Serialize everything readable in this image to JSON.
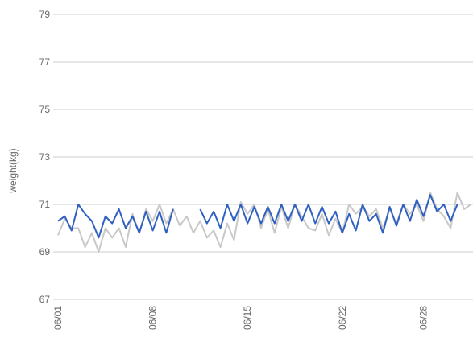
{
  "chart_data": {
    "type": "line",
    "y_label": "weight(kg)",
    "categories": [
      "06/01",
      null,
      null,
      null,
      null,
      null,
      null,
      null,
      null,
      null,
      null,
      null,
      null,
      null,
      "06/08",
      null,
      null,
      null,
      null,
      null,
      null,
      null,
      null,
      null,
      null,
      null,
      null,
      null,
      "06/15",
      null,
      null,
      null,
      null,
      null,
      null,
      null,
      null,
      null,
      null,
      null,
      null,
      null,
      "06/22",
      null,
      null,
      null,
      null,
      null,
      null,
      null,
      null,
      null,
      null,
      null,
      "06/28",
      null,
      null,
      null,
      null,
      null,
      null,
      null
    ],
    "series": [
      {
        "color": "#c8c8c8",
        "values": [
          69.7,
          70.4,
          70.0,
          70.0,
          69.2,
          69.8,
          69.0,
          70.0,
          69.6,
          70.0,
          69.2,
          70.6,
          69.8,
          70.8,
          70.3,
          71.0,
          70.2,
          70.8,
          70.1,
          70.5,
          69.8,
          70.3,
          69.6,
          69.9,
          69.2,
          70.2,
          69.5,
          71.1,
          70.6,
          71.0,
          70.0,
          70.8,
          69.8,
          70.9,
          70.0,
          71.0,
          70.5,
          70.0,
          69.9,
          70.6,
          69.7,
          70.4,
          69.8,
          71.0,
          70.6,
          70.9,
          70.5,
          70.8,
          70.0,
          70.8,
          70.2,
          71.0,
          70.6,
          71.0,
          70.3,
          71.5,
          70.8,
          70.5,
          70.0,
          71.5,
          70.8,
          71.0
        ]
      },
      {
        "color": "#3060c0",
        "values": [
          70.3,
          70.5,
          69.9,
          71.0,
          70.6,
          70.3,
          69.6,
          70.5,
          70.2,
          70.8,
          70.0,
          70.5,
          69.8,
          70.7,
          69.9,
          70.7,
          69.8,
          70.8,
          null,
          null,
          null,
          70.8,
          70.2,
          70.7,
          70.0,
          71.0,
          70.3,
          71.0,
          70.2,
          70.9,
          70.2,
          70.9,
          70.2,
          71.0,
          70.3,
          71.0,
          70.3,
          71.0,
          70.2,
          70.9,
          70.2,
          70.7,
          69.8,
          70.6,
          69.9,
          71.0,
          70.3,
          70.6,
          69.8,
          70.9,
          70.1,
          71.0,
          70.3,
          71.2,
          70.5,
          71.4,
          70.7,
          71.0,
          70.3,
          71.0,
          null,
          null
        ]
      }
    ],
    "ylim": [
      67,
      79
    ],
    "yticks": [
      67,
      69,
      71,
      73,
      75,
      77,
      79
    ],
    "grid": true
  }
}
